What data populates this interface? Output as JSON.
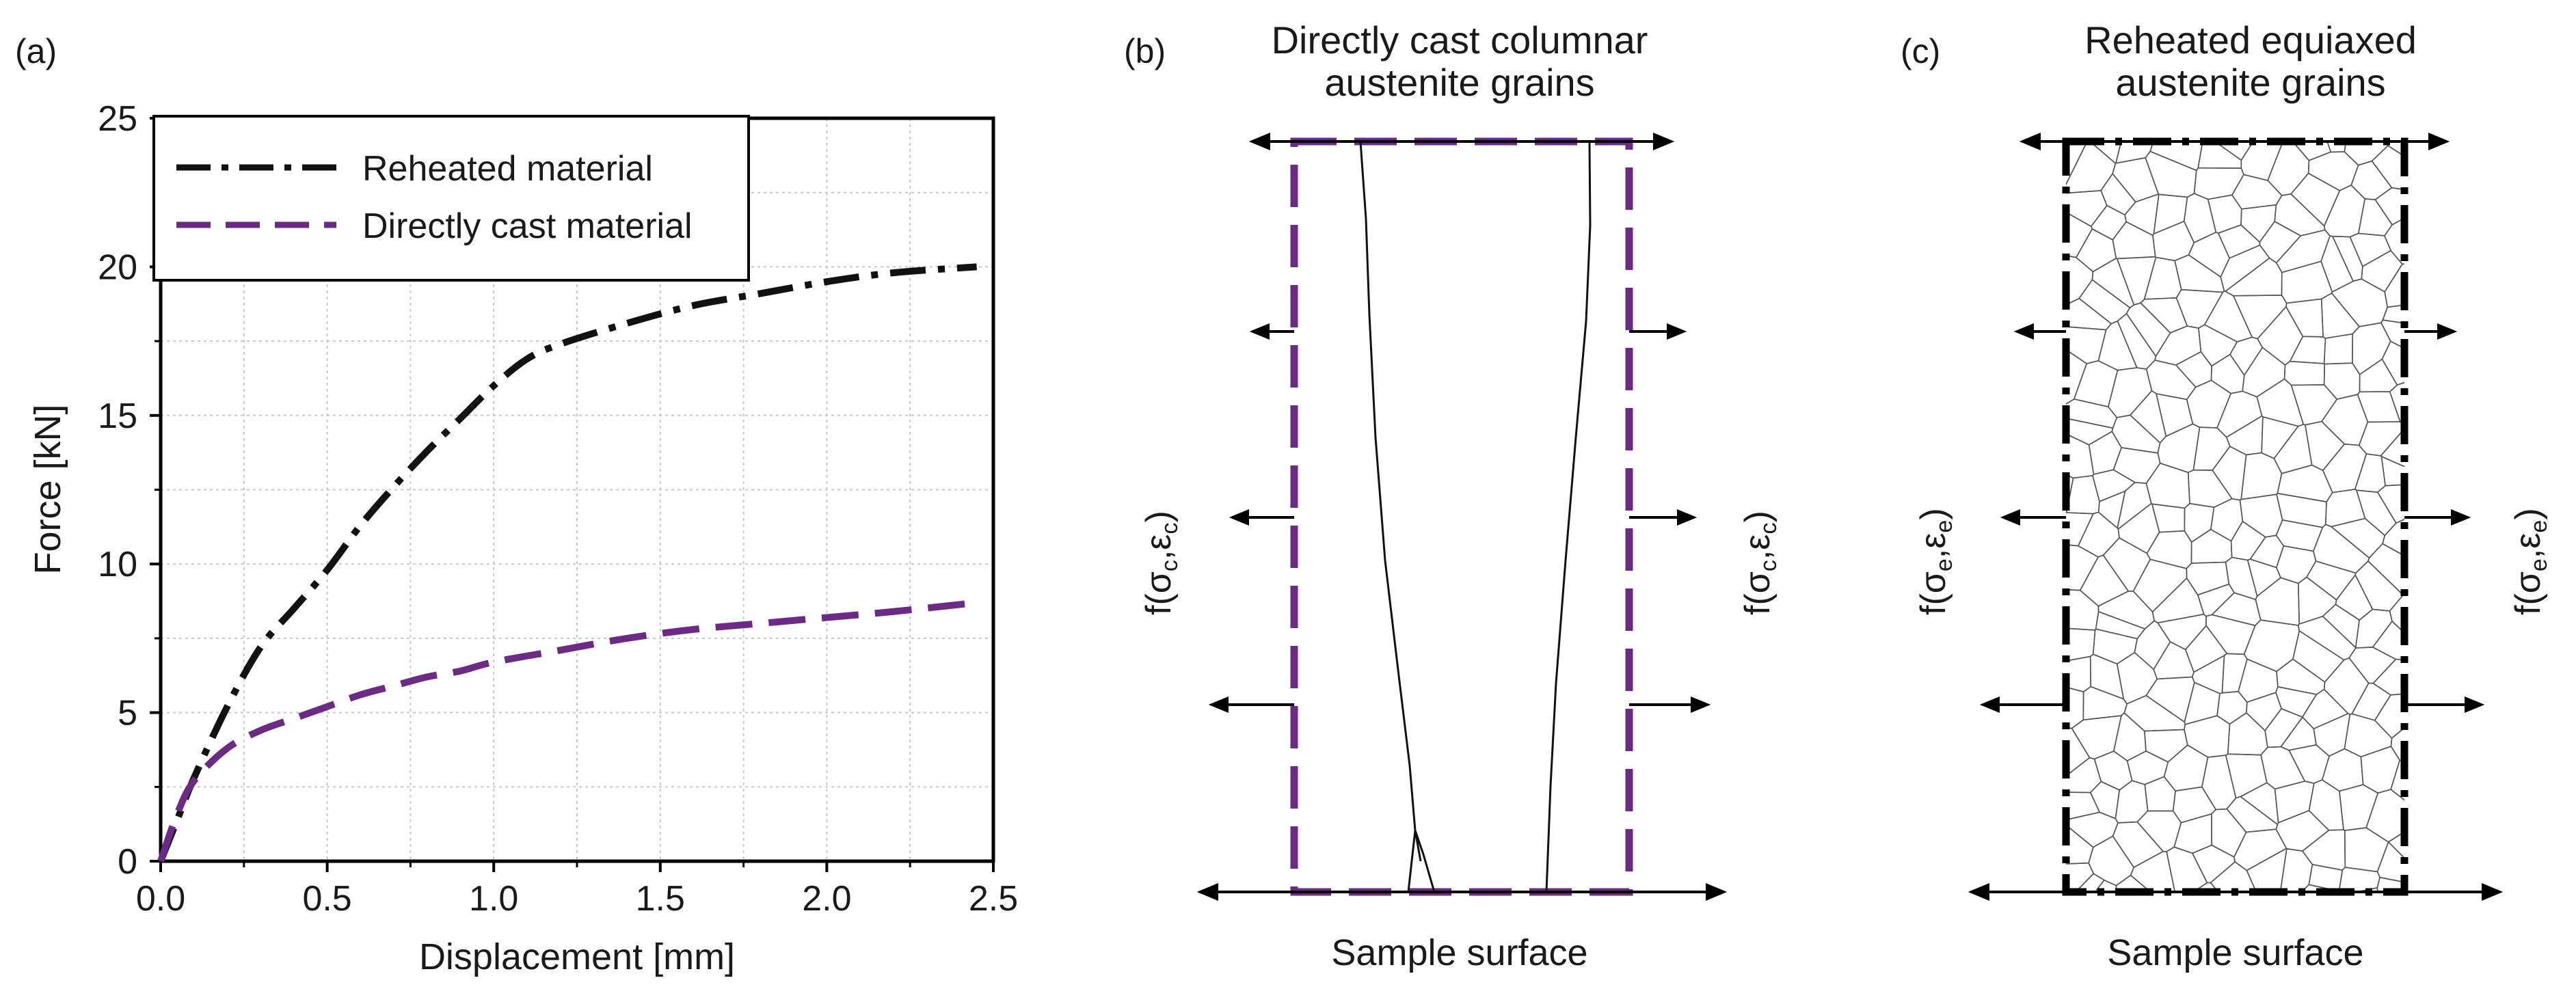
{
  "panels": {
    "a": {
      "label": "(a)"
    },
    "b": {
      "label": "(b)",
      "title_line1": "Directly cast columnar",
      "title_line2": "austenite grains",
      "caption": "Sample surface",
      "func": {
        "prefix": "f(",
        "sigma": "σ",
        "sub": "c",
        "comma": ",",
        "eps": "ε",
        "close": ")"
      }
    },
    "c": {
      "label": "(c)",
      "title_line1": "Reheated equiaxed",
      "title_line2": "austenite grains",
      "caption": "Sample surface",
      "func": {
        "prefix": "f(",
        "sigma": "σ",
        "sub": "e",
        "comma": ",",
        "eps": "ε",
        "close": ")"
      }
    }
  },
  "chart_data": {
    "type": "line",
    "title": "",
    "xlabel": "Displacement [mm]",
    "ylabel": "Force [kN]",
    "xlim": [
      0,
      2.5
    ],
    "ylim": [
      0,
      25
    ],
    "xticks": [
      "0.0",
      "0.5",
      "1.0",
      "1.5",
      "2.0",
      "2.5"
    ],
    "xtick_values": [
      0,
      0.5,
      1.0,
      1.5,
      2.0,
      2.5
    ],
    "yticks": [
      "0",
      "5",
      "10",
      "15",
      "20",
      "25"
    ],
    "ytick_values": [
      0,
      5,
      10,
      15,
      20,
      25
    ],
    "grid": true,
    "legend_position": "top-left",
    "series": [
      {
        "name": "Reheated material",
        "color": "#111111",
        "style": "dash-dot",
        "x": [
          0,
          0.05,
          0.1,
          0.2,
          0.3,
          0.4,
          0.5,
          0.6,
          0.7,
          0.8,
          0.9,
          1.0,
          1.1,
          1.2,
          1.4,
          1.6,
          1.8,
          2.0,
          2.2,
          2.45
        ],
        "y": [
          0,
          1.4,
          2.8,
          5.2,
          7.2,
          8.5,
          9.8,
          11.3,
          12.6,
          13.8,
          14.9,
          16.0,
          16.9,
          17.4,
          18.1,
          18.7,
          19.1,
          19.5,
          19.8,
          20.0
        ]
      },
      {
        "name": "Directly cast material",
        "color": "#6b2a83",
        "style": "dashed",
        "x": [
          0,
          0.05,
          0.1,
          0.2,
          0.3,
          0.4,
          0.5,
          0.6,
          0.7,
          0.8,
          0.9,
          1.0,
          1.2,
          1.4,
          1.6,
          1.8,
          2.0,
          2.2,
          2.45
        ],
        "y": [
          0,
          1.6,
          2.7,
          3.8,
          4.4,
          4.8,
          5.2,
          5.6,
          5.9,
          6.2,
          6.4,
          6.7,
          7.1,
          7.5,
          7.8,
          8.0,
          8.2,
          8.4,
          8.7
        ]
      }
    ]
  }
}
